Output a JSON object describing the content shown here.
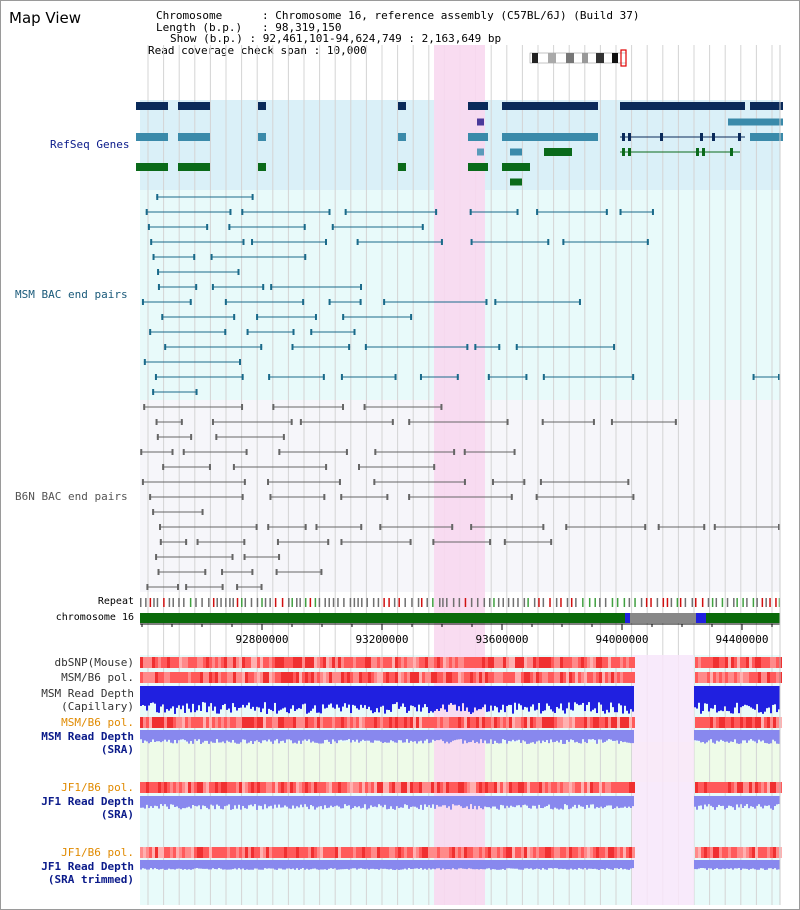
{
  "window": {
    "title": "Map View"
  },
  "info": {
    "chromosome_label": "Chromosome",
    "chromosome_value": "Chromosome 16, reference assembly (C57BL/6J) (Build 37)",
    "length_label": "Length (b.p.)",
    "length_value": "98,319,150",
    "show_label": "Show (b.p.)",
    "show_value": "92,461,101-94,624,749 : 2,163,649 bp",
    "coverage_label": "Read coverage check span",
    "coverage_value": "10,000"
  },
  "tracks": {
    "refseq": "RefSeq Genes",
    "msm_bac": "MSM BAC end pairs",
    "b6n_bac": "B6N BAC end pairs",
    "repeat": "Repeat",
    "chromosome": "chromosome 16",
    "dbsnp": "dbSNP(Mouse)",
    "msm_b6_pol_1": "MSM/B6 pol.",
    "msm_read_depth_cap_1": "MSM Read Depth",
    "msm_read_depth_cap_2": "(Capillary)",
    "msm_b6_pol_2": "MSM/B6 pol.",
    "msm_read_depth_sra_1": "MSM Read Depth",
    "msm_read_depth_sra_2": "(SRA)",
    "jf1_b6_pol_1": "JF1/B6 pol.",
    "jf1_read_depth_sra_1": "JF1 Read Depth",
    "jf1_read_depth_sra_2": "(SRA)",
    "jf1_b6_pol_2": "JF1/B6 pol.",
    "jf1_read_depth_trim_1": "JF1 Read Depth",
    "jf1_read_depth_trim_2": "(SRA trimmed)"
  },
  "axis": {
    "ticks": [
      "92800000",
      "93200000",
      "93600000",
      "94000000",
      "94400000"
    ]
  },
  "colors": {
    "refseq_label": "#0a1a8a",
    "msm_label": "#1a5a7a",
    "b6n_label": "#555555",
    "pol_label": "#e08a00",
    "depth_label": "#0a1a8a",
    "highlight": "#f8d8f0",
    "gene_dark": "#0a2a5a",
    "gene_mid": "#3a8aaa",
    "gene_green": "#0a6a1a",
    "bac_msm": "#1a6a8a",
    "bac_b6n": "#666666",
    "depth_blue": "#2020e0",
    "depth_lavender": "#8888ee"
  }
}
